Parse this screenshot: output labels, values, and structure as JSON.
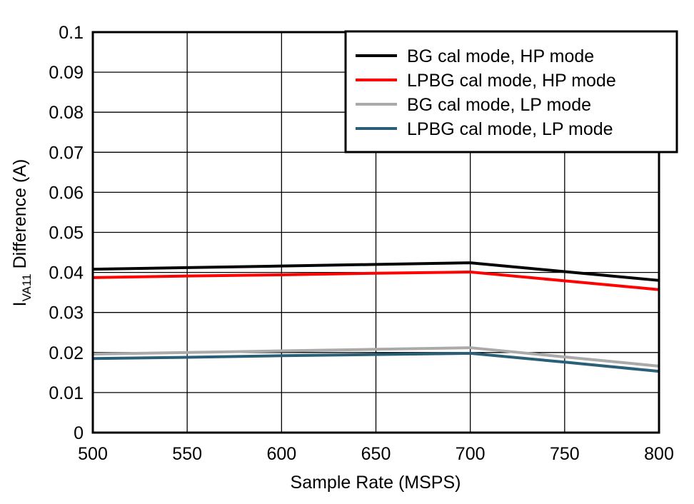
{
  "chart_data": {
    "type": "line",
    "title": "",
    "xlabel": "Sample Rate (MSPS)",
    "ylabel_main": "I",
    "ylabel_sub": "VA11",
    "ylabel_rest": " Difference (A)",
    "xlim": [
      500,
      800
    ],
    "ylim": [
      0,
      0.1
    ],
    "x_ticks": [
      500,
      550,
      600,
      650,
      700,
      750,
      800
    ],
    "x_tick_labels": [
      "500",
      "550",
      "600",
      "650",
      "700",
      "750",
      "800"
    ],
    "y_ticks": [
      0,
      0.01,
      0.02,
      0.03,
      0.04,
      0.05,
      0.06,
      0.07,
      0.08,
      0.09,
      0.1
    ],
    "y_tick_labels": [
      "0",
      "0.01",
      "0.02",
      "0.03",
      "0.04",
      "0.05",
      "0.06",
      "0.07",
      "0.08",
      "0.09",
      "0.1"
    ],
    "grid": true,
    "legend_position": "top-right",
    "x": [
      500,
      550,
      600,
      650,
      700,
      750,
      800
    ],
    "series": [
      {
        "name": "BG cal mode, HP mode",
        "color": "#000000",
        "values": [
          0.0408,
          0.0412,
          0.0416,
          0.042,
          0.0424,
          0.0402,
          0.038
        ]
      },
      {
        "name": "LPBG cal mode, HP mode",
        "color": "#ff0000",
        "values": [
          0.0387,
          0.0391,
          0.0394,
          0.0398,
          0.0401,
          0.0379,
          0.0357
        ]
      },
      {
        "name": "BG cal mode, LP mode",
        "color": "#aaaaaa",
        "values": [
          0.0196,
          0.02,
          0.0204,
          0.0208,
          0.0212,
          0.0189,
          0.0166
        ]
      },
      {
        "name": "LPBG cal mode, LP mode",
        "color": "#2a5f78",
        "values": [
          0.0185,
          0.0188,
          0.0192,
          0.0195,
          0.0198,
          0.0176,
          0.0153
        ]
      }
    ]
  }
}
